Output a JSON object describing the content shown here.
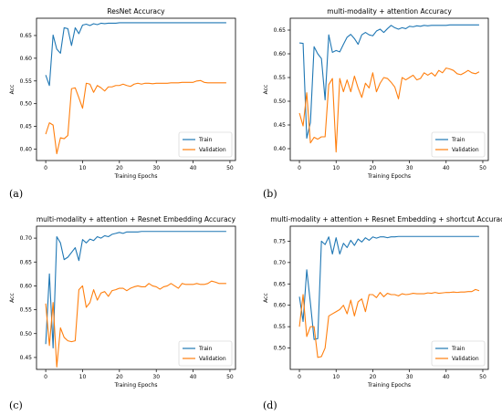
{
  "figure": {
    "panels": [
      "(a)",
      "(b)",
      "(c)",
      "(d)"
    ]
  },
  "colors": {
    "train": "#1f77b4",
    "validation": "#ff7f0e"
  },
  "chart_data": [
    {
      "type": "line",
      "title": "ResNet Accuracy",
      "xlabel": "Training Epochs",
      "ylabel": "Acc",
      "xlim": [
        -2.5,
        51.5
      ],
      "ylim": [
        0.375,
        0.688
      ],
      "xticks": [
        0,
        10,
        20,
        30,
        40,
        50
      ],
      "yticks": [
        0.4,
        0.45,
        0.5,
        0.55,
        0.6,
        0.65
      ],
      "ytick_labels": [
        "0.40",
        "0.45",
        "0.50",
        "0.55",
        "0.60",
        "0.65"
      ],
      "legend_position": "lower-right",
      "x": [
        0,
        1,
        2,
        3,
        4,
        5,
        6,
        7,
        8,
        9,
        10,
        11,
        12,
        13,
        14,
        15,
        16,
        17,
        18,
        19,
        20,
        21,
        22,
        23,
        24,
        25,
        26,
        27,
        28,
        29,
        30,
        31,
        32,
        33,
        34,
        35,
        36,
        37,
        38,
        39,
        40,
        41,
        42,
        43,
        44,
        45,
        46,
        47,
        48,
        49
      ],
      "series": [
        {
          "name": "Train",
          "values": [
            0.563,
            0.54,
            0.651,
            0.62,
            0.611,
            0.667,
            0.665,
            0.628,
            0.667,
            0.654,
            0.673,
            0.675,
            0.672,
            0.676,
            0.674,
            0.677,
            0.676,
            0.677,
            0.677,
            0.677,
            0.678,
            0.678,
            0.678,
            0.678,
            0.678,
            0.678,
            0.678,
            0.678,
            0.678,
            0.678,
            0.678,
            0.678,
            0.678,
            0.678,
            0.678,
            0.678,
            0.678,
            0.678,
            0.678,
            0.678,
            0.678,
            0.678,
            0.678,
            0.678,
            0.678,
            0.678,
            0.678,
            0.678,
            0.678,
            0.678
          ]
        },
        {
          "name": "Validation",
          "values": [
            0.433,
            0.458,
            0.453,
            0.39,
            0.425,
            0.423,
            0.43,
            0.533,
            0.535,
            0.513,
            0.49,
            0.545,
            0.543,
            0.525,
            0.54,
            0.535,
            0.528,
            0.537,
            0.537,
            0.54,
            0.54,
            0.543,
            0.54,
            0.538,
            0.543,
            0.545,
            0.543,
            0.545,
            0.545,
            0.544,
            0.545,
            0.545,
            0.545,
            0.545,
            0.546,
            0.546,
            0.546,
            0.547,
            0.547,
            0.547,
            0.547,
            0.55,
            0.551,
            0.547,
            0.546,
            0.546,
            0.546,
            0.546,
            0.546,
            0.546
          ]
        }
      ]
    },
    {
      "type": "line",
      "title": "multi-modality + attention Accuracy",
      "xlabel": "Training Epochs",
      "ylabel": "Acc",
      "xlim": [
        -2.5,
        51.5
      ],
      "ylim": [
        0.375,
        0.675
      ],
      "xticks": [
        0,
        10,
        20,
        30,
        40,
        50
      ],
      "yticks": [
        0.4,
        0.45,
        0.5,
        0.55,
        0.6,
        0.65
      ],
      "ytick_labels": [
        "0.40",
        "0.45",
        "0.50",
        "0.55",
        "0.60",
        "0.65"
      ],
      "legend_position": "lower-right",
      "x": [
        0,
        1,
        2,
        3,
        4,
        5,
        6,
        7,
        8,
        9,
        10,
        11,
        12,
        13,
        14,
        15,
        16,
        17,
        18,
        19,
        20,
        21,
        22,
        23,
        24,
        25,
        26,
        27,
        28,
        29,
        30,
        31,
        32,
        33,
        34,
        35,
        36,
        37,
        38,
        39,
        40,
        41,
        42,
        43,
        44,
        45,
        46,
        47,
        48,
        49
      ],
      "series": [
        {
          "name": "Train",
          "values": [
            0.623,
            0.622,
            0.422,
            0.455,
            0.615,
            0.6,
            0.59,
            0.503,
            0.64,
            0.603,
            0.607,
            0.604,
            0.62,
            0.635,
            0.641,
            0.632,
            0.62,
            0.64,
            0.645,
            0.64,
            0.638,
            0.648,
            0.652,
            0.645,
            0.653,
            0.66,
            0.655,
            0.652,
            0.655,
            0.653,
            0.658,
            0.657,
            0.659,
            0.658,
            0.66,
            0.659,
            0.66,
            0.66,
            0.66,
            0.66,
            0.66,
            0.661,
            0.661,
            0.661,
            0.661,
            0.661,
            0.661,
            0.661,
            0.661,
            0.661
          ]
        },
        {
          "name": "Validation",
          "values": [
            0.475,
            0.448,
            0.518,
            0.412,
            0.424,
            0.42,
            0.425,
            0.425,
            0.535,
            0.548,
            0.393,
            0.548,
            0.52,
            0.545,
            0.52,
            0.553,
            0.528,
            0.508,
            0.538,
            0.528,
            0.56,
            0.52,
            0.538,
            0.55,
            0.548,
            0.54,
            0.53,
            0.505,
            0.55,
            0.545,
            0.55,
            0.555,
            0.545,
            0.548,
            0.56,
            0.555,
            0.56,
            0.553,
            0.565,
            0.56,
            0.57,
            0.568,
            0.565,
            0.558,
            0.556,
            0.56,
            0.565,
            0.56,
            0.558,
            0.562
          ]
        }
      ]
    },
    {
      "type": "line",
      "title": "multi-modality + attention + Resnet Embedding Accuracy",
      "xlabel": "Training Epochs",
      "ylabel": "Acc",
      "xlim": [
        -2.5,
        51.5
      ],
      "ylim": [
        0.425,
        0.725
      ],
      "xticks": [
        0,
        10,
        20,
        30,
        40,
        50
      ],
      "yticks": [
        0.45,
        0.5,
        0.55,
        0.6,
        0.65,
        0.7
      ],
      "ytick_labels": [
        "0.45",
        "0.50",
        "0.55",
        "0.60",
        "0.65",
        "0.70"
      ],
      "legend_position": "lower-right",
      "x": [
        0,
        1,
        2,
        3,
        4,
        5,
        6,
        7,
        8,
        9,
        10,
        11,
        12,
        13,
        14,
        15,
        16,
        17,
        18,
        19,
        20,
        21,
        22,
        23,
        24,
        25,
        26,
        27,
        28,
        29,
        30,
        31,
        32,
        33,
        34,
        35,
        36,
        37,
        38,
        39,
        40,
        41,
        42,
        43,
        44,
        45,
        46,
        47,
        48,
        49
      ],
      "series": [
        {
          "name": "Train",
          "values": [
            0.478,
            0.625,
            0.47,
            0.703,
            0.69,
            0.655,
            0.66,
            0.67,
            0.68,
            0.653,
            0.697,
            0.69,
            0.698,
            0.695,
            0.703,
            0.7,
            0.705,
            0.703,
            0.708,
            0.71,
            0.712,
            0.71,
            0.713,
            0.713,
            0.713,
            0.713,
            0.714,
            0.714,
            0.714,
            0.714,
            0.714,
            0.714,
            0.714,
            0.714,
            0.714,
            0.714,
            0.714,
            0.714,
            0.714,
            0.714,
            0.714,
            0.714,
            0.714,
            0.714,
            0.714,
            0.714,
            0.714,
            0.714,
            0.714,
            0.714
          ]
        },
        {
          "name": "Validation",
          "values": [
            0.563,
            0.475,
            0.565,
            0.43,
            0.512,
            0.492,
            0.485,
            0.483,
            0.485,
            0.592,
            0.6,
            0.555,
            0.565,
            0.592,
            0.57,
            0.585,
            0.588,
            0.578,
            0.59,
            0.592,
            0.595,
            0.595,
            0.59,
            0.595,
            0.598,
            0.6,
            0.598,
            0.598,
            0.605,
            0.6,
            0.598,
            0.593,
            0.598,
            0.6,
            0.605,
            0.6,
            0.595,
            0.605,
            0.603,
            0.603,
            0.603,
            0.605,
            0.603,
            0.603,
            0.605,
            0.61,
            0.608,
            0.605,
            0.605,
            0.605
          ]
        }
      ]
    },
    {
      "type": "line",
      "title": "multi-modality + attention + Resnet Embedding + shortcut Accuracy",
      "xlabel": "Training Epochs",
      "ylabel": "Acc",
      "xlim": [
        -2.5,
        51.5
      ],
      "ylim": [
        0.45,
        0.785
      ],
      "xticks": [
        0,
        10,
        20,
        30,
        40,
        50
      ],
      "yticks": [
        0.5,
        0.55,
        0.6,
        0.65,
        0.7,
        0.75
      ],
      "ytick_labels": [
        "0.50",
        "0.55",
        "0.60",
        "0.65",
        "0.70",
        "0.75"
      ],
      "legend_position": "lower-right",
      "x": [
        0,
        1,
        2,
        3,
        4,
        5,
        6,
        7,
        8,
        9,
        10,
        11,
        12,
        13,
        14,
        15,
        16,
        17,
        18,
        19,
        20,
        21,
        22,
        23,
        24,
        25,
        26,
        27,
        28,
        29,
        30,
        31,
        32,
        33,
        34,
        35,
        36,
        37,
        38,
        39,
        40,
        41,
        42,
        43,
        44,
        45,
        46,
        47,
        48,
        49
      ],
      "series": [
        {
          "name": "Train",
          "values": [
            0.62,
            0.562,
            0.683,
            0.605,
            0.52,
            0.522,
            0.75,
            0.742,
            0.76,
            0.72,
            0.758,
            0.72,
            0.745,
            0.735,
            0.752,
            0.74,
            0.755,
            0.748,
            0.758,
            0.752,
            0.76,
            0.757,
            0.76,
            0.76,
            0.758,
            0.76,
            0.76,
            0.761,
            0.761,
            0.761,
            0.761,
            0.761,
            0.761,
            0.761,
            0.761,
            0.761,
            0.761,
            0.761,
            0.761,
            0.761,
            0.761,
            0.761,
            0.761,
            0.761,
            0.761,
            0.761,
            0.761,
            0.761,
            0.761,
            0.761
          ]
        },
        {
          "name": "Validation",
          "values": [
            0.55,
            0.625,
            0.527,
            0.55,
            0.55,
            0.478,
            0.48,
            0.5,
            0.575,
            0.58,
            0.585,
            0.59,
            0.6,
            0.58,
            0.612,
            0.575,
            0.608,
            0.615,
            0.585,
            0.625,
            0.625,
            0.618,
            0.63,
            0.62,
            0.628,
            0.625,
            0.625,
            0.622,
            0.627,
            0.625,
            0.626,
            0.628,
            0.627,
            0.627,
            0.627,
            0.629,
            0.628,
            0.63,
            0.628,
            0.629,
            0.63,
            0.63,
            0.631,
            0.63,
            0.631,
            0.631,
            0.632,
            0.632,
            0.637,
            0.634
          ]
        }
      ]
    }
  ]
}
